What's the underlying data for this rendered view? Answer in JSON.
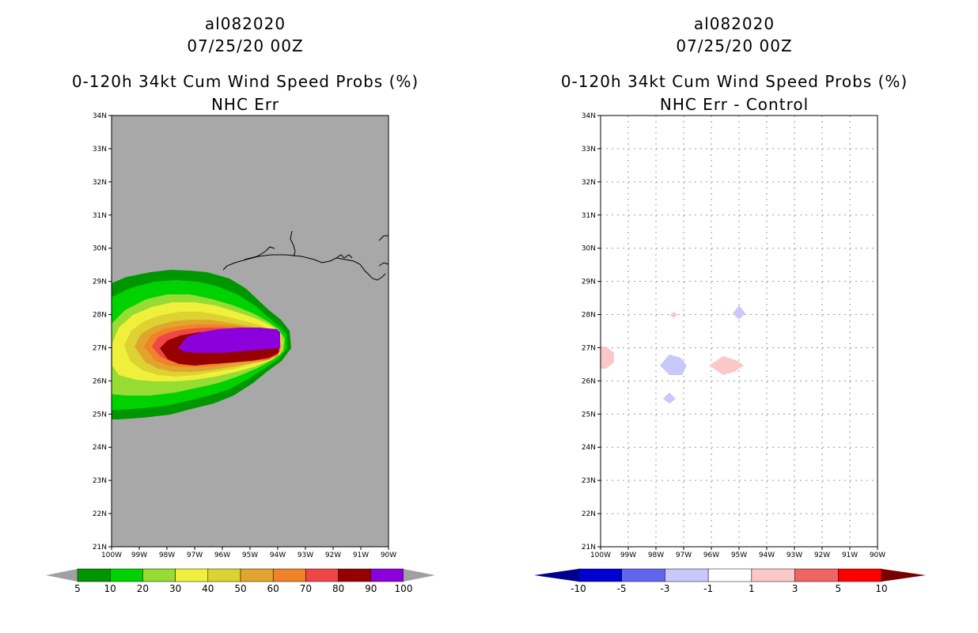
{
  "left": {
    "storm_id": "al082020",
    "date": "07/25/20 00Z",
    "product": "0-120h 34kt Cum Wind Speed Probs (%)",
    "subtitle": "NHC Err",
    "lat_labels": [
      "34N",
      "33N",
      "32N",
      "31N",
      "30N",
      "29N",
      "28N",
      "27N",
      "26N",
      "25N",
      "24N",
      "23N",
      "22N",
      "21N"
    ],
    "lon_labels": [
      "100W",
      "99W",
      "98W",
      "97W",
      "96W",
      "95W",
      "94W",
      "93W",
      "92W",
      "91W",
      "90W"
    ],
    "colorbar": {
      "colors": [
        "#009600",
        "#00d200",
        "#96dc32",
        "#f0f03c",
        "#dcd232",
        "#e1a52d",
        "#f08228",
        "#f04646",
        "#960000",
        "#8c00dc"
      ],
      "under_color": "#a0a0a0",
      "over_color": "#a0a0a0",
      "tick_labels": [
        "5",
        "10",
        "20",
        "30",
        "40",
        "50",
        "60",
        "70",
        "80",
        "90",
        "100"
      ]
    }
  },
  "right": {
    "storm_id": "al082020",
    "date": "07/25/20 00Z",
    "product": "0-120h 34kt Cum Wind Speed Probs (%)",
    "subtitle": "NHC Err - Control",
    "lat_labels": [
      "34N",
      "33N",
      "32N",
      "31N",
      "30N",
      "29N",
      "28N",
      "27N",
      "26N",
      "25N",
      "24N",
      "23N",
      "22N",
      "21N"
    ],
    "lon_labels": [
      "100W",
      "99W",
      "98W",
      "97W",
      "96W",
      "95W",
      "94W",
      "93W",
      "92W",
      "91W",
      "90W"
    ],
    "colorbar": {
      "colors": [
        "#0000d2",
        "#6464f0",
        "#c8c8fa",
        "#ffffff",
        "#fac8c8",
        "#f06464",
        "#ff0000"
      ],
      "under_color": "#00008c",
      "over_color": "#780000",
      "tick_labels": [
        "-10",
        "-5",
        "-3",
        "-1",
        "1",
        "3",
        "5",
        "10"
      ]
    }
  }
}
